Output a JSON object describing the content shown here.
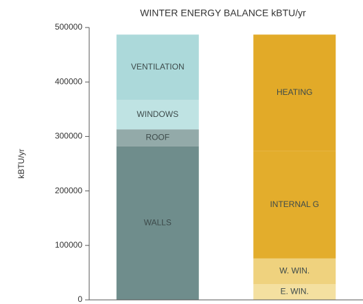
{
  "chart_data": {
    "type": "stacked_bar",
    "title": "WINTER ENERGY BALANCE kBTU/yr",
    "ylabel": "kBTU/yr",
    "categories": [
      null,
      null
    ],
    "series": [
      {
        "name": "WALLS",
        "color": "#6f8d8c",
        "values": [
          282000,
          null
        ]
      },
      {
        "name": "ROOF",
        "color": "#93aaa9",
        "values": [
          31000,
          null
        ]
      },
      {
        "name": "WINDOWS",
        "color": "#bfe3e3",
        "values": [
          54000,
          null
        ]
      },
      {
        "name": "VENTILATION",
        "color": "#acd9da",
        "values": [
          120000,
          null
        ]
      },
      {
        "name": "E. WIN.",
        "color": "#f4e0a0",
        "values": [
          null,
          29000
        ]
      },
      {
        "name": "W. WIN.",
        "color": "#efd27e",
        "values": [
          null,
          47000
        ]
      },
      {
        "name": "INTERNAL G",
        "color": "#e3ad2c",
        "values": [
          null,
          197000
        ]
      },
      {
        "name": "HEATING",
        "color": "#e2aa28",
        "values": [
          null,
          214000
        ]
      }
    ],
    "ylim": [
      0,
      500000
    ],
    "yticks": [
      0,
      100000,
      200000,
      300000,
      400000,
      500000
    ]
  }
}
